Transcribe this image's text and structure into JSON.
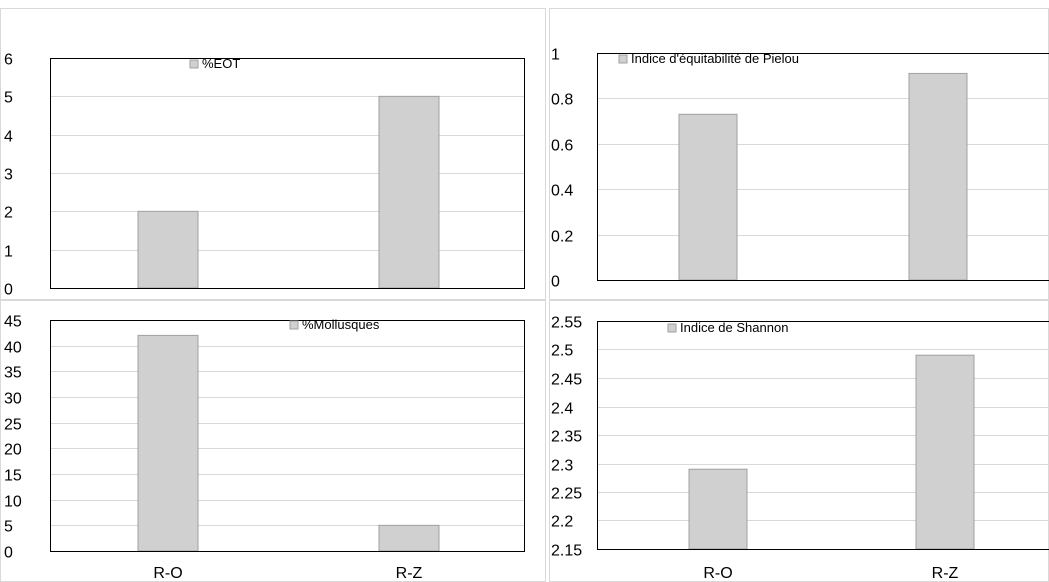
{
  "chart_data": [
    {
      "type": "bar",
      "categories": [
        "R-O",
        "R-Z"
      ],
      "series": [
        {
          "name": "%EOT",
          "values": [
            2,
            5
          ]
        }
      ],
      "ylim": [
        0,
        6
      ],
      "yticks": [
        "0",
        "1",
        "2",
        "3",
        "4",
        "5",
        "6"
      ],
      "show_category_labels": false,
      "grid": true,
      "legend": "top-left",
      "color": "#d0d0d0"
    },
    {
      "type": "bar",
      "categories": [
        "R-O",
        "R-Z"
      ],
      "series": [
        {
          "name": "Indice d'équitabilité de Pielou",
          "values": [
            0.73,
            0.91
          ]
        }
      ],
      "ylim": [
        0,
        1
      ],
      "yticks": [
        "0",
        "0.2",
        "0.4",
        "0.6",
        "0.8",
        "1"
      ],
      "show_category_labels": false,
      "grid": true,
      "legend": "top-left",
      "color": "#d0d0d0"
    },
    {
      "type": "bar",
      "categories": [
        "R-O",
        "R-Z"
      ],
      "series": [
        {
          "name": "%Mollusques",
          "values": [
            42,
            5
          ]
        }
      ],
      "ylim": [
        0,
        45
      ],
      "yticks": [
        "0",
        "5",
        "10",
        "15",
        "20",
        "25",
        "30",
        "35",
        "40",
        "45"
      ],
      "show_category_labels": true,
      "grid": true,
      "legend": "top-center",
      "color": "#d0d0d0"
    },
    {
      "type": "bar",
      "categories": [
        "R-O",
        "R-Z"
      ],
      "series": [
        {
          "name": "Indice de Shannon",
          "values": [
            2.29,
            2.49
          ]
        }
      ],
      "ylim": [
        2.15,
        2.55
      ],
      "yticks": [
        "2.15",
        "2.2",
        "2.25",
        "2.3",
        "2.35",
        "2.4",
        "2.45",
        "2.5",
        "2.55"
      ],
      "show_category_labels": true,
      "grid": true,
      "legend": "top-left",
      "color": "#d0d0d0"
    }
  ]
}
